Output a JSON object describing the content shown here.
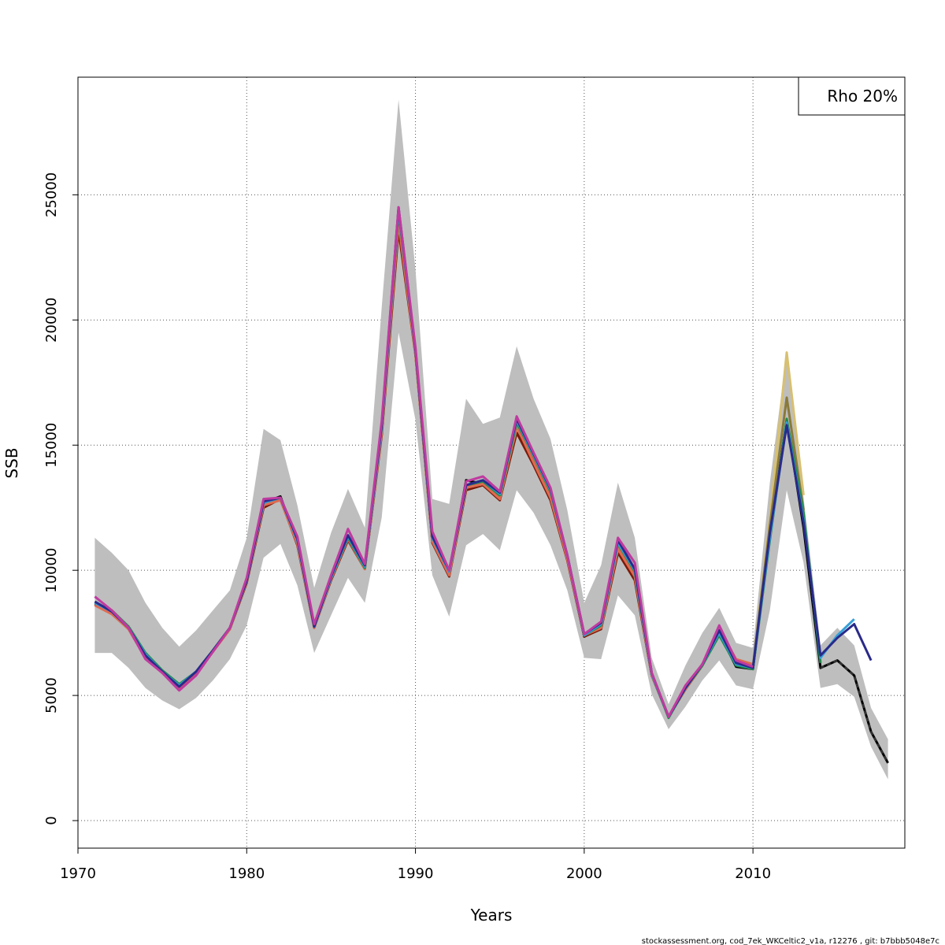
{
  "chart_data": {
    "type": "line",
    "xlabel": "Years",
    "ylabel": "SSB",
    "xlim": [
      1970,
      2019
    ],
    "ylim": [
      -1100,
      29700
    ],
    "x_ticks": [
      1970,
      1980,
      1990,
      2000,
      2010
    ],
    "y_ticks": [
      0,
      5000,
      10000,
      15000,
      20000,
      25000
    ],
    "grid": true,
    "legend": {
      "text": "Rho 20%",
      "position": "top-right"
    },
    "band": {
      "years": [
        1971,
        1972,
        1973,
        1974,
        1975,
        1976,
        1977,
        1978,
        1979,
        1980,
        1981,
        1982,
        1983,
        1984,
        1985,
        1986,
        1987,
        1988,
        1989,
        1990,
        1991,
        1992,
        1993,
        1994,
        1995,
        1996,
        1997,
        1998,
        1999,
        2000,
        2001,
        2002,
        2003,
        2004,
        2005,
        2006,
        2007,
        2008,
        2009,
        2010,
        2011,
        2012,
        2013,
        2014,
        2015,
        2016,
        2017,
        2018
      ],
      "lower": [
        6700,
        6700,
        6100,
        5300,
        4800,
        4450,
        4900,
        5600,
        6450,
        7800,
        10500,
        11050,
        9400,
        6700,
        8200,
        9700,
        8700,
        12100,
        19500,
        16000,
        9800,
        8150,
        11000,
        11450,
        10800,
        13200,
        12300,
        11000,
        9200,
        6500,
        6450,
        9000,
        8200,
        5050,
        3650,
        4550,
        5600,
        6400,
        5400,
        5250,
        8400,
        13200,
        10300,
        5300,
        5450,
        4950,
        2950,
        1650
      ],
      "upper": [
        11300,
        10700,
        10000,
        8700,
        7700,
        6950,
        7600,
        8400,
        9200,
        11300,
        15650,
        15200,
        12600,
        9300,
        11500,
        13250,
        11700,
        20500,
        28800,
        22000,
        12850,
        12650,
        16850,
        15850,
        16100,
        18950,
        16850,
        15250,
        12400,
        8700,
        10200,
        13500,
        11300,
        6500,
        4650,
        6200,
        7500,
        8500,
        7100,
        6900,
        13500,
        18700,
        12900,
        7000,
        7700,
        7000,
        4500,
        3250
      ]
    },
    "series": [
      {
        "color": "#000000",
        "x": [
          1971,
          1972,
          1973,
          1974,
          1975,
          1976,
          1977,
          1978,
          1979,
          1980,
          1981,
          1982,
          1983,
          1984,
          1985,
          1986,
          1987,
          1988,
          1989,
          1990,
          1991,
          1992,
          1993,
          1994,
          1995,
          1996,
          1997,
          1998,
          1999,
          2000,
          2001,
          2002,
          2003,
          2004,
          2005,
          2006,
          2007,
          2008,
          2009,
          2010,
          2011,
          2012,
          2013,
          2014,
          2015,
          2016,
          2017,
          2018
        ],
        "y": [
          8650,
          8300,
          7700,
          6550,
          5950,
          5300,
          5900,
          6800,
          7700,
          9550,
          12700,
          12950,
          11100,
          7750,
          9650,
          11250,
          10100,
          15500,
          24200,
          18800,
          11200,
          9850,
          13600,
          13450,
          12850,
          15700,
          14400,
          13000,
          10500,
          7350,
          7700,
          10800,
          9700,
          5800,
          4150,
          5250,
          6200,
          7500,
          6150,
          6050,
          11500,
          16000,
          11700,
          6100,
          6400,
          5800,
          3550,
          2300
        ]
      },
      {
        "color": "#7a1a0a",
        "x": [
          1971,
          1972,
          1973,
          1974,
          1975,
          1976,
          1977,
          1978,
          1979,
          1980,
          1981,
          1982,
          1983,
          1984,
          1985,
          1986,
          1987,
          1988,
          1989,
          1990,
          1991,
          1992,
          1993,
          1994,
          1995,
          1996,
          1997,
          1998,
          1999,
          2000,
          2001,
          2002,
          2003,
          2004,
          2005,
          2006,
          2007,
          2008,
          2009,
          2010,
          2011
        ],
        "y": [
          8650,
          8300,
          7650,
          6500,
          5950,
          5300,
          5850,
          6750,
          7650,
          9500,
          12500,
          12850,
          11000,
          7700,
          9600,
          11200,
          10050,
          15400,
          23600,
          18600,
          11100,
          9750,
          13200,
          13400,
          12800,
          15500,
          14200,
          12800,
          10400,
          7350,
          7650,
          10700,
          9600,
          5800,
          4150,
          5250,
          6200,
          7600,
          6200,
          6100,
          11500
        ]
      },
      {
        "color": "#d8c070",
        "x": [
          1971,
          1972,
          1973,
          1974,
          1975,
          1976,
          1977,
          1978,
          1979,
          1980,
          1981,
          1982,
          1983,
          1984,
          1985,
          1986,
          1987,
          1988,
          1989,
          1990,
          1991,
          1992,
          1993,
          1994,
          1995,
          1996,
          1997,
          1998,
          1999,
          2000,
          2001,
          2002,
          2003,
          2004,
          2005,
          2006,
          2007,
          2008,
          2009,
          2010,
          2011,
          2012,
          2013
        ],
        "y": [
          8700,
          8350,
          7700,
          6600,
          5950,
          5350,
          5950,
          6800,
          7700,
          9600,
          12600,
          12850,
          11100,
          7750,
          9700,
          11300,
          10100,
          15600,
          24000,
          18700,
          11200,
          9850,
          13300,
          13450,
          12900,
          15700,
          14450,
          13000,
          10500,
          7400,
          7750,
          10900,
          9800,
          5850,
          4150,
          5300,
          6250,
          7600,
          6300,
          6150,
          12000,
          18700,
          13000
        ]
      },
      {
        "color": "#8a7a3a",
        "x": [
          1971,
          1972,
          1973,
          1974,
          1975,
          1976,
          1977,
          1978,
          1979,
          1980,
          1981,
          1982,
          1983,
          1984,
          1985,
          1986,
          1987,
          1988,
          1989,
          1990,
          1991,
          1992,
          1993,
          1994,
          1995,
          1996,
          1997,
          1998,
          1999,
          2000,
          2001,
          2002,
          2003,
          2004,
          2005,
          2006,
          2007,
          2008,
          2009,
          2010,
          2011,
          2012,
          2013
        ],
        "y": [
          8700,
          8350,
          7700,
          6600,
          5950,
          5350,
          5950,
          6800,
          7700,
          9600,
          12650,
          12850,
          11150,
          7750,
          9700,
          11300,
          10100,
          15600,
          24100,
          18700,
          11300,
          9900,
          13400,
          13500,
          12950,
          15800,
          14500,
          13050,
          10550,
          7400,
          7800,
          11000,
          9900,
          5850,
          4150,
          5300,
          6250,
          7600,
          6300,
          6150,
          11800,
          16900,
          12400
        ]
      },
      {
        "color": "#e06a50",
        "x": [
          1971,
          1972,
          1973,
          1974,
          1975,
          1976,
          1977,
          1978,
          1979,
          1980,
          1981,
          1982,
          1983,
          1984,
          1985,
          1986,
          1987,
          1988,
          1989,
          1990,
          1991,
          1992,
          1993,
          1994,
          1995,
          1996,
          1997,
          1998,
          1999,
          2000,
          2001,
          2002,
          2003,
          2004,
          2005,
          2006,
          2007,
          2008,
          2009,
          2010
        ],
        "y": [
          8600,
          8250,
          7650,
          6500,
          5900,
          5250,
          5850,
          6750,
          7650,
          9550,
          12600,
          12800,
          11050,
          7700,
          9650,
          11250,
          10050,
          15500,
          23900,
          18600,
          11150,
          9800,
          13300,
          13450,
          12850,
          15750,
          14300,
          12900,
          10450,
          7400,
          7700,
          10850,
          9750,
          5800,
          4150,
          5250,
          6200,
          7650,
          6450,
          6250
        ]
      },
      {
        "color": "#1f8a4a",
        "x": [
          1971,
          1972,
          1973,
          1974,
          1975,
          1976,
          1977,
          1978,
          1979,
          1980,
          1981,
          1982,
          1983,
          1984,
          1985,
          1986,
          1987,
          1988,
          1989,
          1990,
          1991,
          1992,
          1993,
          1994,
          1995,
          1996,
          1997,
          1998,
          1999,
          2000,
          2001,
          2002,
          2003,
          2004,
          2005,
          2006,
          2007,
          2008,
          2009,
          2010,
          2011,
          2012,
          2013,
          2014
        ],
        "y": [
          8700,
          8400,
          7750,
          6700,
          6000,
          5450,
          5950,
          6800,
          7700,
          9600,
          12700,
          12900,
          11200,
          7750,
          9700,
          11300,
          10100,
          15700,
          24300,
          18800,
          11300,
          9950,
          13400,
          13550,
          13000,
          15900,
          14600,
          13150,
          10600,
          7400,
          7800,
          11100,
          9950,
          5850,
          4100,
          5300,
          6200,
          7400,
          6200,
          6050,
          11200,
          16050,
          12300,
          6300
        ]
      },
      {
        "color": "#35a0d8",
        "x": [
          1971,
          1972,
          1973,
          1974,
          1975,
          1976,
          1977,
          1978,
          1979,
          1980,
          1981,
          1982,
          1983,
          1984,
          1985,
          1986,
          1987,
          1988,
          1989,
          1990,
          1991,
          1992,
          1993,
          1994,
          1995,
          1996,
          1997,
          1998,
          1999,
          2000,
          2001,
          2002,
          2003,
          2004,
          2005,
          2006,
          2007,
          2008,
          2009,
          2010,
          2011,
          2012,
          2013,
          2014,
          2015,
          2016
        ],
        "y": [
          8700,
          8350,
          7700,
          6650,
          5950,
          5400,
          5950,
          6800,
          7700,
          9600,
          12700,
          12900,
          11200,
          7750,
          9700,
          11350,
          10150,
          15700,
          24400,
          18800,
          11300,
          9950,
          13400,
          13600,
          13050,
          16000,
          14600,
          13200,
          10600,
          7400,
          7850,
          11100,
          10000,
          5850,
          4150,
          5300,
          6250,
          7500,
          6250,
          6100,
          11300,
          15900,
          12000,
          6500,
          7400,
          8050
        ]
      },
      {
        "color": "#2a2a8a",
        "x": [
          1971,
          1972,
          1973,
          1974,
          1975,
          1976,
          1977,
          1978,
          1979,
          1980,
          1981,
          1982,
          1983,
          1984,
          1985,
          1986,
          1987,
          1988,
          1989,
          1990,
          1991,
          1992,
          1993,
          1994,
          1995,
          1996,
          1997,
          1998,
          1999,
          2000,
          2001,
          2002,
          2003,
          2004,
          2005,
          2006,
          2007,
          2008,
          2009,
          2010,
          2011,
          2012,
          2013,
          2014,
          2015,
          2016,
          2017
        ],
        "y": [
          8750,
          8350,
          7700,
          6600,
          5950,
          5350,
          5950,
          6800,
          7700,
          9600,
          12750,
          12900,
          11250,
          7750,
          9750,
          11400,
          10200,
          15800,
          24500,
          18800,
          11350,
          10000,
          13400,
          13600,
          13100,
          16050,
          14650,
          13250,
          10600,
          7450,
          7900,
          11200,
          10050,
          5900,
          4150,
          5300,
          6250,
          7600,
          6300,
          6100,
          11500,
          15800,
          11900,
          6600,
          7300,
          7850,
          6400
        ]
      },
      {
        "color": "#c03aa0",
        "x": [
          1971,
          1972,
          1973,
          1974,
          1975,
          1976,
          1977,
          1978,
          1979,
          1980,
          1981,
          1982,
          1983,
          1984,
          1985,
          1986,
          1987,
          1988,
          1989,
          1990,
          1991,
          1992,
          1993,
          1994,
          1995,
          1996,
          1997,
          1998,
          1999,
          2000,
          2001,
          2002,
          2003,
          2004,
          2005,
          2006,
          2007,
          2008,
          2009,
          2010
        ],
        "y": [
          8950,
          8400,
          7700,
          6450,
          5900,
          5200,
          5800,
          6750,
          7700,
          9700,
          12850,
          12900,
          11350,
          7850,
          9800,
          11650,
          10250,
          15950,
          24500,
          18900,
          11550,
          10000,
          13550,
          13750,
          13150,
          16150,
          14700,
          13300,
          10600,
          7450,
          7950,
          11300,
          10300,
          5900,
          4150,
          5400,
          6250,
          7800,
          6400,
          6150
        ]
      },
      {
        "color": "#333333",
        "dashed": true,
        "x": [
          2014,
          2015,
          2016,
          2017,
          2018
        ],
        "y": [
          6100,
          6400,
          5800,
          3550,
          2300
        ]
      }
    ]
  },
  "footer": "stockassessment.org, cod_7ek_WKCeltic2_v1a, r12276 , git: b7bbb5048e7c"
}
